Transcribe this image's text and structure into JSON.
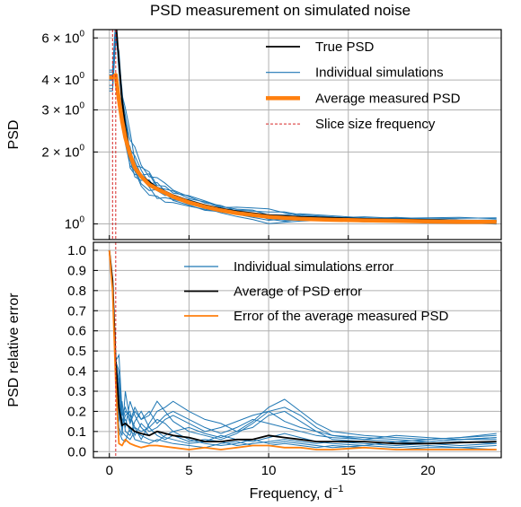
{
  "chart_data": [
    {
      "type": "line",
      "title": "PSD measurement on simulated noise",
      "xlabel": "",
      "ylabel": "PSD",
      "yscale": "log",
      "xlim": [
        -1,
        24.6
      ],
      "ylim": [
        0.86,
        6.5
      ],
      "xticks": [
        0,
        5,
        10,
        15,
        20
      ],
      "yticks": [
        {
          "value": 1,
          "label": "10",
          "exp": "0"
        },
        {
          "value": 2,
          "label": "2 × 10",
          "exp": "0"
        },
        {
          "value": 3,
          "label": "3 × 10",
          "exp": "0"
        },
        {
          "value": 4,
          "label": "4 × 10",
          "exp": "0"
        },
        {
          "value": 6,
          "label": "6 × 10",
          "exp": "0"
        }
      ],
      "grid": true,
      "legend_position": "top-right",
      "legend": [
        "True PSD",
        "Individual simulations",
        "Average measured PSD",
        "Slice size frequency"
      ],
      "series": [
        {
          "name": "True PSD",
          "color": "#000000",
          "x": [
            0.45,
            0.6,
            0.8,
            1.0,
            1.3,
            1.6,
            2.0,
            2.5,
            3.0,
            4.0,
            5.0,
            6.0,
            7.0,
            8.0,
            10.0,
            12.0,
            14.0,
            16.0,
            18.0,
            20.0,
            22.0,
            24.3
          ],
          "y": [
            6.5,
            4.8,
            3.3,
            2.55,
            1.95,
            1.75,
            1.6,
            1.5,
            1.42,
            1.32,
            1.25,
            1.2,
            1.16,
            1.13,
            1.09,
            1.07,
            1.06,
            1.05,
            1.045,
            1.04,
            1.035,
            1.03
          ]
        },
        {
          "name": "Average measured PSD",
          "color": "#ff7f0e",
          "x": [
            0.0,
            0.2,
            0.2,
            0.4,
            0.6,
            0.8,
            1.0,
            1.3,
            1.6,
            2.0,
            2.5,
            3.0,
            4.0,
            5.0,
            6.0,
            7.0,
            8.0,
            10.0,
            12.0,
            14.0,
            16.0,
            18.0,
            20.0,
            22.0,
            24.3
          ],
          "y": [
            4.1,
            4.1,
            4.1,
            4.2,
            3.3,
            2.7,
            2.3,
            1.95,
            1.72,
            1.58,
            1.46,
            1.4,
            1.3,
            1.23,
            1.18,
            1.14,
            1.11,
            1.07,
            1.05,
            1.04,
            1.035,
            1.03,
            1.025,
            1.02,
            1.02
          ]
        },
        {
          "name": "Slice size frequency",
          "color": "#d62728",
          "vline_x": [
            0.2,
            0.4
          ]
        }
      ],
      "individual_simulations": {
        "name": "Individual simulations",
        "color": "#1f77b4",
        "x": [
          0.4,
          0.6,
          0.8,
          1.0,
          1.3,
          1.6,
          2.0,
          2.5,
          3.0,
          3.5,
          4.0,
          5.0,
          6.0,
          7.0,
          8.0,
          9.0,
          10.0,
          11.0,
          12.0,
          14.0,
          16.0,
          18.0,
          20.0,
          22.0,
          24.3
        ],
        "ratios": [
          [
            1.0,
            1.05,
            0.9,
            1.1,
            1.15,
            1.2,
            1.1,
            1.05,
            1.1,
            1.08,
            1.05,
            1.04,
            1.02,
            1.03,
            1.0,
            0.99,
            0.97,
            0.98,
            1.0,
            1.01,
            1.0,
            1.01,
            1.0,
            0.99,
            1.0
          ],
          [
            1.1,
            0.95,
            1.0,
            0.85,
            0.9,
            0.95,
            0.9,
            0.88,
            0.92,
            0.9,
            0.93,
            0.95,
            0.96,
            0.97,
            0.98,
            0.99,
            0.96,
            0.95,
            0.98,
            0.99,
            1.0,
            0.99,
            1.0,
            1.0,
            0.99
          ],
          [
            0.9,
            1.1,
            1.05,
            1.2,
            1.25,
            1.05,
            1.0,
            1.08,
            1.0,
            1.02,
            1.04,
            1.02,
            1.03,
            1.01,
            1.04,
            1.05,
            1.06,
            1.03,
            1.01,
            1.0,
            1.02,
            1.01,
            1.02,
            1.03,
            1.02
          ],
          [
            1.05,
            0.9,
            0.95,
            1.0,
            0.88,
            0.92,
            1.0,
            0.95,
            0.9,
            0.94,
            0.96,
            0.98,
            0.97,
            0.96,
            0.95,
            0.94,
            0.92,
            0.94,
            0.96,
            0.98,
            0.97,
            0.98,
            0.97,
            0.98,
            0.97
          ],
          [
            1.0,
            1.0,
            1.1,
            0.95,
            1.05,
            1.1,
            1.05,
            0.98,
            1.05,
            1.0,
            0.98,
            1.01,
            1.0,
            0.99,
            1.01,
            1.02,
            1.03,
            1.04,
            1.02,
            1.01,
            1.0,
            1.02,
            1.01,
            1.0,
            1.01
          ],
          [
            0.95,
            1.05,
            0.98,
            1.05,
            0.95,
            0.9,
            0.95,
            1.02,
            0.97,
            0.96,
            1.0,
            0.97,
            0.98,
            1.0,
            0.97,
            0.96,
            0.95,
            0.97,
            0.99,
            0.97,
            0.99,
            0.98,
            0.99,
            0.98,
            0.99
          ],
          [
            1.08,
            0.98,
            1.02,
            1.12,
            1.0,
            1.0,
            1.08,
            1.1,
            1.02,
            1.05,
            1.02,
            1.05,
            1.04,
            1.02,
            1.02,
            1.03,
            1.0,
            1.01,
            1.03,
            1.02,
            1.01,
            1.0,
            1.01,
            1.02,
            1.03
          ],
          [
            0.92,
            1.02,
            0.92,
            0.9,
            1.08,
            0.98,
            0.92,
            0.92,
            0.98,
            0.98,
            0.95,
            0.96,
            0.95,
            0.97,
            0.99,
            1.0,
            0.98,
            0.96,
            0.97,
            0.99,
            0.98,
            0.99,
            0.98,
            0.99,
            0.98
          ]
        ]
      }
    },
    {
      "type": "line",
      "title": "",
      "xlabel": "Frequency, d",
      "xlabel_sup": "−1",
      "ylabel": "PSD relative error",
      "xlim": [
        -1,
        24.6
      ],
      "ylim": [
        -0.03,
        1.04
      ],
      "xticks": [
        0,
        5,
        10,
        15,
        20
      ],
      "yticks": [
        0.0,
        0.1,
        0.2,
        0.3,
        0.4,
        0.5,
        0.6,
        0.7,
        0.8,
        0.9,
        1.0
      ],
      "grid": true,
      "legend_position": "top-right",
      "legend": [
        "Individual simulations error",
        "Average of PSD error",
        "Error of the average measured PSD"
      ],
      "series": [
        {
          "name": "Average of PSD error",
          "color": "#000000",
          "x": [
            0.0,
            0.2,
            0.4,
            0.6,
            0.8,
            1.0,
            1.3,
            1.6,
            2.0,
            2.5,
            3.0,
            4.0,
            5.0,
            6.0,
            7.0,
            8.0,
            9.0,
            10.0,
            11.0,
            12.0,
            13.0,
            14.0,
            16.0,
            18.0,
            20.0,
            22.0,
            24.3
          ],
          "y": [
            1.0,
            0.85,
            0.45,
            0.22,
            0.13,
            0.14,
            0.12,
            0.1,
            0.09,
            0.08,
            0.1,
            0.08,
            0.07,
            0.05,
            0.05,
            0.06,
            0.06,
            0.08,
            0.07,
            0.06,
            0.05,
            0.05,
            0.05,
            0.04,
            0.04,
            0.045,
            0.05
          ]
        },
        {
          "name": "Error of the average measured PSD",
          "color": "#ff7f0e",
          "x": [
            0.0,
            0.2,
            0.4,
            0.6,
            0.8,
            1.0,
            1.3,
            1.6,
            2.0,
            2.5,
            3.0,
            4.0,
            5.0,
            6.0,
            7.0,
            8.0,
            9.0,
            10.0,
            11.0,
            12.0,
            13.0,
            14.0,
            16.0,
            18.0,
            20.0,
            22.0,
            24.3
          ],
          "y": [
            1.0,
            0.8,
            0.35,
            0.04,
            0.03,
            0.06,
            0.04,
            0.03,
            0.02,
            0.03,
            0.03,
            0.02,
            0.01,
            0.02,
            0.01,
            0.02,
            0.03,
            0.03,
            0.02,
            0.02,
            0.01,
            0.01,
            0.02,
            0.01,
            0.01,
            0.01,
            0.01
          ]
        },
        {
          "name": "Slice size frequency",
          "color": "#d62728",
          "vline_x": [
            0.4
          ]
        }
      ],
      "individual_simulations": {
        "name": "Individual simulations error",
        "color": "#1f77b4",
        "x": [
          0.0,
          0.2,
          0.4,
          0.6,
          0.8,
          1.0,
          1.3,
          1.6,
          2.0,
          2.5,
          3.0,
          3.5,
          4.0,
          5.0,
          6.0,
          7.0,
          8.0,
          9.0,
          10.0,
          11.0,
          12.0,
          13.0,
          14.0,
          16.0,
          18.0,
          20.0,
          22.0,
          24.3
        ],
        "y": [
          [
            1.0,
            0.85,
            0.45,
            0.3,
            0.15,
            0.2,
            0.18,
            0.12,
            0.1,
            0.12,
            0.16,
            0.14,
            0.1,
            0.12,
            0.09,
            0.07,
            0.1,
            0.12,
            0.18,
            0.2,
            0.15,
            0.1,
            0.06,
            0.05,
            0.04,
            0.05,
            0.06,
            0.07
          ],
          [
            1.0,
            0.85,
            0.45,
            0.48,
            0.2,
            0.12,
            0.25,
            0.18,
            0.12,
            0.08,
            0.1,
            0.07,
            0.06,
            0.04,
            0.05,
            0.08,
            0.06,
            0.05,
            0.07,
            0.09,
            0.07,
            0.05,
            0.04,
            0.03,
            0.05,
            0.04,
            0.03,
            0.04
          ],
          [
            1.0,
            0.85,
            0.45,
            0.12,
            0.08,
            0.3,
            0.15,
            0.22,
            0.16,
            0.18,
            0.25,
            0.2,
            0.15,
            0.1,
            0.08,
            0.06,
            0.09,
            0.14,
            0.2,
            0.22,
            0.18,
            0.12,
            0.08,
            0.06,
            0.05,
            0.06,
            0.07,
            0.08
          ],
          [
            1.0,
            0.85,
            0.45,
            0.2,
            0.1,
            0.08,
            0.06,
            0.1,
            0.08,
            0.06,
            0.05,
            0.08,
            0.1,
            0.06,
            0.04,
            0.03,
            0.04,
            0.06,
            0.04,
            0.05,
            0.04,
            0.03,
            0.02,
            0.03,
            0.02,
            0.03,
            0.02,
            0.03
          ],
          [
            1.0,
            0.85,
            0.45,
            0.35,
            0.12,
            0.18,
            0.2,
            0.08,
            0.14,
            0.1,
            0.12,
            0.16,
            0.18,
            0.14,
            0.1,
            0.12,
            0.15,
            0.18,
            0.2,
            0.15,
            0.12,
            0.1,
            0.08,
            0.07,
            0.06,
            0.05,
            0.06,
            0.06
          ],
          [
            1.0,
            0.85,
            0.45,
            0.15,
            0.25,
            0.1,
            0.08,
            0.15,
            0.2,
            0.12,
            0.08,
            0.06,
            0.08,
            0.05,
            0.06,
            0.05,
            0.03,
            0.04,
            0.05,
            0.06,
            0.05,
            0.04,
            0.05,
            0.04,
            0.03,
            0.04,
            0.05,
            0.04
          ],
          [
            1.0,
            0.85,
            0.45,
            0.25,
            0.14,
            0.16,
            0.1,
            0.12,
            0.06,
            0.14,
            0.2,
            0.22,
            0.25,
            0.2,
            0.16,
            0.14,
            0.1,
            0.15,
            0.22,
            0.26,
            0.2,
            0.14,
            0.1,
            0.08,
            0.07,
            0.06,
            0.07,
            0.09
          ],
          [
            1.0,
            0.85,
            0.45,
            0.1,
            0.06,
            0.05,
            0.12,
            0.06,
            0.05,
            0.04,
            0.06,
            0.05,
            0.04,
            0.03,
            0.02,
            0.04,
            0.05,
            0.03,
            0.03,
            0.04,
            0.03,
            0.02,
            0.03,
            0.02,
            0.01,
            0.02,
            0.02,
            0.01
          ],
          [
            1.0,
            0.85,
            0.45,
            0.4,
            0.18,
            0.22,
            0.14,
            0.2,
            0.16,
            0.2,
            0.14,
            0.18,
            0.2,
            0.16,
            0.12,
            0.09,
            0.12,
            0.16,
            0.14,
            0.12,
            0.1,
            0.08,
            0.07,
            0.06,
            0.08,
            0.07,
            0.06,
            0.07
          ]
        ]
      }
    }
  ]
}
